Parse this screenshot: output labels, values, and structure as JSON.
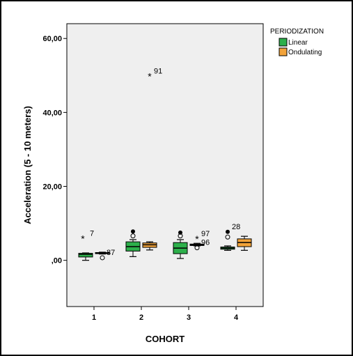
{
  "chart_data": {
    "type": "boxplot",
    "xlabel": "COHORT",
    "ylabel": "Acceleration (5 - 10 meters)",
    "categories": [
      "1",
      "2",
      "3",
      "4"
    ],
    "ylim": [
      -12.5,
      64
    ],
    "yticks": [
      {
        "value": 0,
        "label": ",00"
      },
      {
        "value": 20,
        "label": "20,00"
      },
      {
        "value": 40,
        "label": "40,00"
      },
      {
        "value": 60,
        "label": "60,00"
      }
    ],
    "grid": false,
    "legend": {
      "title": "PERIODIZATION",
      "placement": "right",
      "entries": [
        {
          "name": "Linear",
          "color": "#2db04b"
        },
        {
          "name": "Ondulating",
          "color": "#f2a33a"
        }
      ]
    },
    "series": [
      {
        "name": "Linear",
        "color": "#2db04b",
        "boxes": [
          {
            "category": "1",
            "min": 0.0,
            "q1": 0.9,
            "median": 1.6,
            "q3": 1.9,
            "max": 2.0,
            "outliers": [
              {
                "value": 5.9,
                "marker": "star",
                "label": "7"
              }
            ]
          },
          {
            "category": "2",
            "min": 1.0,
            "q1": 2.5,
            "median": 3.7,
            "q3": 5.0,
            "max": 5.6,
            "outliers": [
              {
                "value": 7.8,
                "marker": "dot",
                "label": ""
              },
              {
                "value": 6.6,
                "marker": "circle",
                "label": ""
              }
            ]
          },
          {
            "category": "3",
            "min": 0.5,
            "q1": 1.8,
            "median": 3.3,
            "q3": 4.8,
            "max": 5.6,
            "outliers": [
              {
                "value": 7.5,
                "marker": "dot",
                "label": ""
              },
              {
                "value": 6.6,
                "marker": "circle",
                "label": ""
              }
            ]
          },
          {
            "category": "4",
            "min": 2.7,
            "q1": 3.0,
            "median": 3.3,
            "q3": 3.6,
            "max": 3.9,
            "outliers": [
              {
                "value": 7.7,
                "marker": "dot",
                "label": "28"
              },
              {
                "value": 6.3,
                "marker": "circle",
                "label": ""
              }
            ]
          }
        ]
      },
      {
        "name": "Ondulating",
        "color": "#f2a33a",
        "boxes": [
          {
            "category": "1",
            "min": 1.7,
            "q1": 1.8,
            "median": 1.95,
            "q3": 2.1,
            "max": 2.2,
            "outliers": [
              {
                "value": 0.7,
                "marker": "circle",
                "label": "87"
              }
            ]
          },
          {
            "category": "2",
            "min": 2.8,
            "q1": 3.5,
            "median": 4.2,
            "q3": 4.7,
            "max": 5.0,
            "outliers": [
              {
                "value": 49.8,
                "marker": "star",
                "label": "91"
              }
            ]
          },
          {
            "category": "3",
            "min": 3.9,
            "q1": 4.0,
            "median": 4.2,
            "q3": 4.4,
            "max": 4.6,
            "outliers": [
              {
                "value": 5.8,
                "marker": "star",
                "label": "97"
              },
              {
                "value": 3.4,
                "marker": "circle",
                "label": "96"
              }
            ]
          },
          {
            "category": "4",
            "min": 2.7,
            "q1": 3.7,
            "median": 4.8,
            "q3": 5.8,
            "max": 6.5,
            "outliers": []
          }
        ]
      }
    ]
  }
}
